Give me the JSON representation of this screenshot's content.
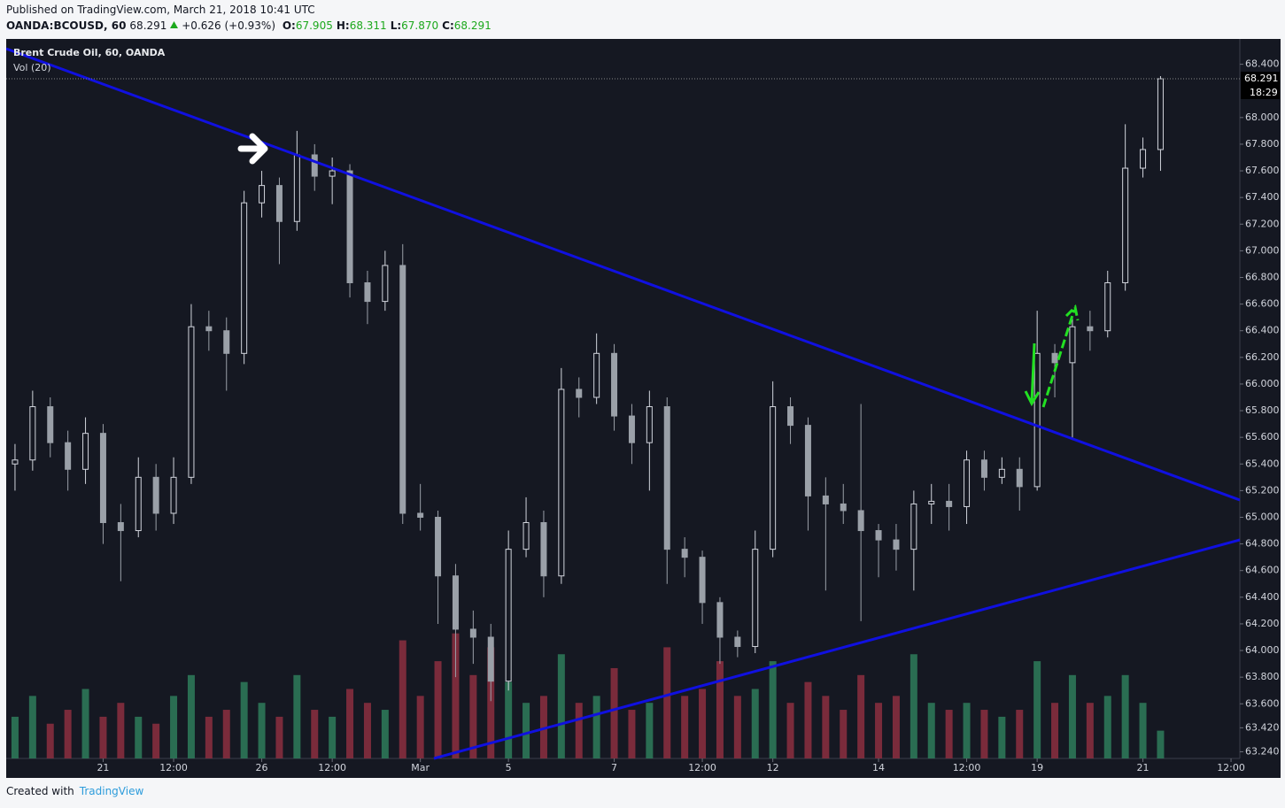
{
  "chart_data": {
    "type": "candlestick",
    "header": {
      "published": "Published on TradingView.com, March 21, 2018 10:41 UTC",
      "symbol": "OANDA:BCOUSD, 60",
      "last": "68.291",
      "change": "+0.626 (+0.93%)",
      "ohlc": [
        {
          "label": "O:",
          "value": "67.905"
        },
        {
          "label": "H:",
          "value": "68.311"
        },
        {
          "label": "L:",
          "value": "67.870"
        },
        {
          "label": "C:",
          "value": "68.291"
        }
      ]
    },
    "title": "Brent Crude Oil, 60, OANDA",
    "volume_title": "Vol (20)",
    "footer": {
      "created": "Created with",
      "brand": "TradingView"
    },
    "categories": [
      null,
      null,
      null,
      null,
      null,
      "21",
      null,
      null,
      null,
      "12:00",
      null,
      null,
      null,
      null,
      "26",
      null,
      null,
      null,
      "12:00",
      null,
      null,
      null,
      null,
      "Mar",
      null,
      null,
      null,
      null,
      "5",
      null,
      null,
      null,
      null,
      null,
      "7",
      null,
      null,
      null,
      null,
      "12:00",
      null,
      null,
      null,
      "12",
      null,
      null,
      null,
      null,
      null,
      "14",
      null,
      null,
      null,
      null,
      "12:00",
      null,
      null,
      null,
      "19",
      null,
      null,
      null,
      null,
      null,
      "21",
      null,
      null,
      null,
      null,
      "12:00"
    ],
    "open": [
      65.4,
      65.43,
      65.83,
      65.56,
      65.36,
      65.63,
      64.96,
      64.9,
      65.3,
      65.03,
      65.3,
      66.43,
      66.4,
      66.23,
      67.36,
      67.49,
      67.22,
      67.72,
      67.56,
      67.6,
      66.76,
      66.62,
      66.89,
      65.03,
      65.0,
      64.56,
      64.16,
      64.1,
      63.77,
      64.76,
      64.96,
      64.56,
      65.96,
      65.9,
      66.23,
      65.76,
      65.56,
      65.83,
      64.76,
      64.7,
      64.36,
      64.1,
      64.03,
      64.76,
      65.83,
      65.69,
      65.16,
      65.1,
      65.05,
      64.9,
      64.83,
      64.76,
      65.1,
      65.12,
      65.08,
      65.43,
      65.3,
      65.36,
      65.23,
      66.23,
      66.16,
      66.43,
      66.4,
      66.76,
      67.62,
      67.76,
      null,
      null,
      null,
      null
    ],
    "high": [
      65.55,
      65.95,
      65.9,
      65.65,
      65.75,
      65.7,
      65.1,
      65.45,
      65.4,
      65.45,
      66.6,
      66.55,
      66.5,
      67.45,
      67.6,
      67.55,
      67.9,
      67.8,
      67.7,
      67.65,
      66.85,
      67.0,
      67.05,
      65.25,
      65.05,
      64.65,
      64.3,
      64.2,
      64.9,
      65.15,
      65.05,
      66.12,
      66.05,
      66.38,
      66.3,
      65.85,
      65.95,
      65.9,
      64.85,
      64.75,
      64.4,
      64.15,
      64.9,
      66.02,
      65.9,
      65.75,
      65.3,
      65.25,
      65.85,
      64.95,
      64.95,
      65.2,
      65.25,
      65.25,
      65.5,
      65.5,
      65.45,
      65.45,
      66.55,
      66.3,
      66.5,
      66.55,
      66.85,
      67.95,
      67.85,
      68.311,
      null,
      null,
      null,
      null
    ],
    "low": [
      65.2,
      65.35,
      65.45,
      65.2,
      65.25,
      64.8,
      64.52,
      64.85,
      64.9,
      64.95,
      65.25,
      66.25,
      65.95,
      66.15,
      67.25,
      66.9,
      67.15,
      67.45,
      67.35,
      66.65,
      66.45,
      66.55,
      64.95,
      64.9,
      64.2,
      63.8,
      63.9,
      63.62,
      63.7,
      64.7,
      64.4,
      64.5,
      65.75,
      65.85,
      65.65,
      65.4,
      65.2,
      64.5,
      64.55,
      64.2,
      63.9,
      63.95,
      63.98,
      64.7,
      65.55,
      64.9,
      64.45,
      64.95,
      64.22,
      64.55,
      64.6,
      64.45,
      64.95,
      64.9,
      64.95,
      65.2,
      65.25,
      65.05,
      65.2,
      65.9,
      65.58,
      66.25,
      66.35,
      66.7,
      67.55,
      67.6,
      null,
      null,
      null,
      null
    ],
    "close": [
      65.43,
      65.83,
      65.56,
      65.36,
      65.63,
      64.96,
      64.9,
      65.3,
      65.03,
      65.3,
      66.43,
      66.4,
      66.23,
      67.36,
      67.49,
      67.22,
      67.72,
      67.56,
      67.6,
      66.76,
      66.62,
      66.89,
      65.03,
      65.0,
      64.56,
      64.16,
      64.1,
      63.77,
      64.76,
      64.96,
      64.56,
      65.96,
      65.9,
      66.23,
      65.76,
      65.56,
      65.83,
      64.76,
      64.7,
      64.36,
      64.1,
      64.03,
      64.76,
      65.83,
      65.69,
      65.16,
      65.1,
      65.05,
      64.9,
      64.83,
      64.76,
      65.1,
      65.12,
      65.08,
      65.43,
      65.3,
      65.36,
      65.23,
      66.23,
      66.16,
      66.43,
      66.4,
      66.76,
      67.62,
      67.76,
      68.291,
      null,
      null,
      null,
      null
    ],
    "volume": [
      30,
      45,
      25,
      35,
      50,
      30,
      40,
      30,
      25,
      45,
      60,
      30,
      35,
      55,
      40,
      30,
      60,
      35,
      30,
      50,
      40,
      35,
      85,
      45,
      70,
      90,
      60,
      80,
      55,
      40,
      45,
      75,
      40,
      45,
      65,
      35,
      40,
      80,
      45,
      50,
      70,
      45,
      50,
      70,
      40,
      55,
      45,
      35,
      60,
      40,
      45,
      75,
      40,
      35,
      40,
      35,
      30,
      35,
      70,
      40,
      60,
      40,
      45,
      60,
      40,
      20,
      null,
      null,
      null,
      null
    ],
    "up_color": "#d1d4dc",
    "down_color": "#9aa0a8",
    "volume_up_color": "#2e7d5b",
    "volume_down_color": "#8c2f3f",
    "ylim": [
      63.19,
      68.59
    ],
    "y2lim": [
      0,
      100
    ],
    "yticks": [
      {
        "value": 68.4,
        "label": "68.400"
      },
      {
        "value": 68.0,
        "label": "68.000"
      },
      {
        "value": 67.8,
        "label": "67.800"
      },
      {
        "value": 67.6,
        "label": "67.600"
      },
      {
        "value": 67.4,
        "label": "67.400"
      },
      {
        "value": 67.2,
        "label": "67.200"
      },
      {
        "value": 67.0,
        "label": "67.000"
      },
      {
        "value": 66.8,
        "label": "66.800"
      },
      {
        "value": 66.6,
        "label": "66.600"
      },
      {
        "value": 66.4,
        "label": "66.400"
      },
      {
        "value": 66.2,
        "label": "66.200"
      },
      {
        "value": 66.0,
        "label": "66.000"
      },
      {
        "value": 65.8,
        "label": "65.800"
      },
      {
        "value": 65.6,
        "label": "65.600"
      },
      {
        "value": 65.4,
        "label": "65.400"
      },
      {
        "value": 65.2,
        "label": "65.200"
      },
      {
        "value": 65.0,
        "label": "65.000"
      },
      {
        "value": 64.8,
        "label": "64.800"
      },
      {
        "value": 64.6,
        "label": "64.600"
      },
      {
        "value": 64.4,
        "label": "64.400"
      },
      {
        "value": 64.2,
        "label": "64.200"
      },
      {
        "value": 64.0,
        "label": "64.000"
      },
      {
        "value": 63.8,
        "label": "63.800"
      },
      {
        "value": 63.6,
        "label": "63.600"
      },
      {
        "value": 63.42,
        "label": "63.420"
      },
      {
        "value": 63.24,
        "label": "63.240"
      }
    ],
    "last_price": 68.291,
    "countdown": "18:29",
    "grid": false
  }
}
